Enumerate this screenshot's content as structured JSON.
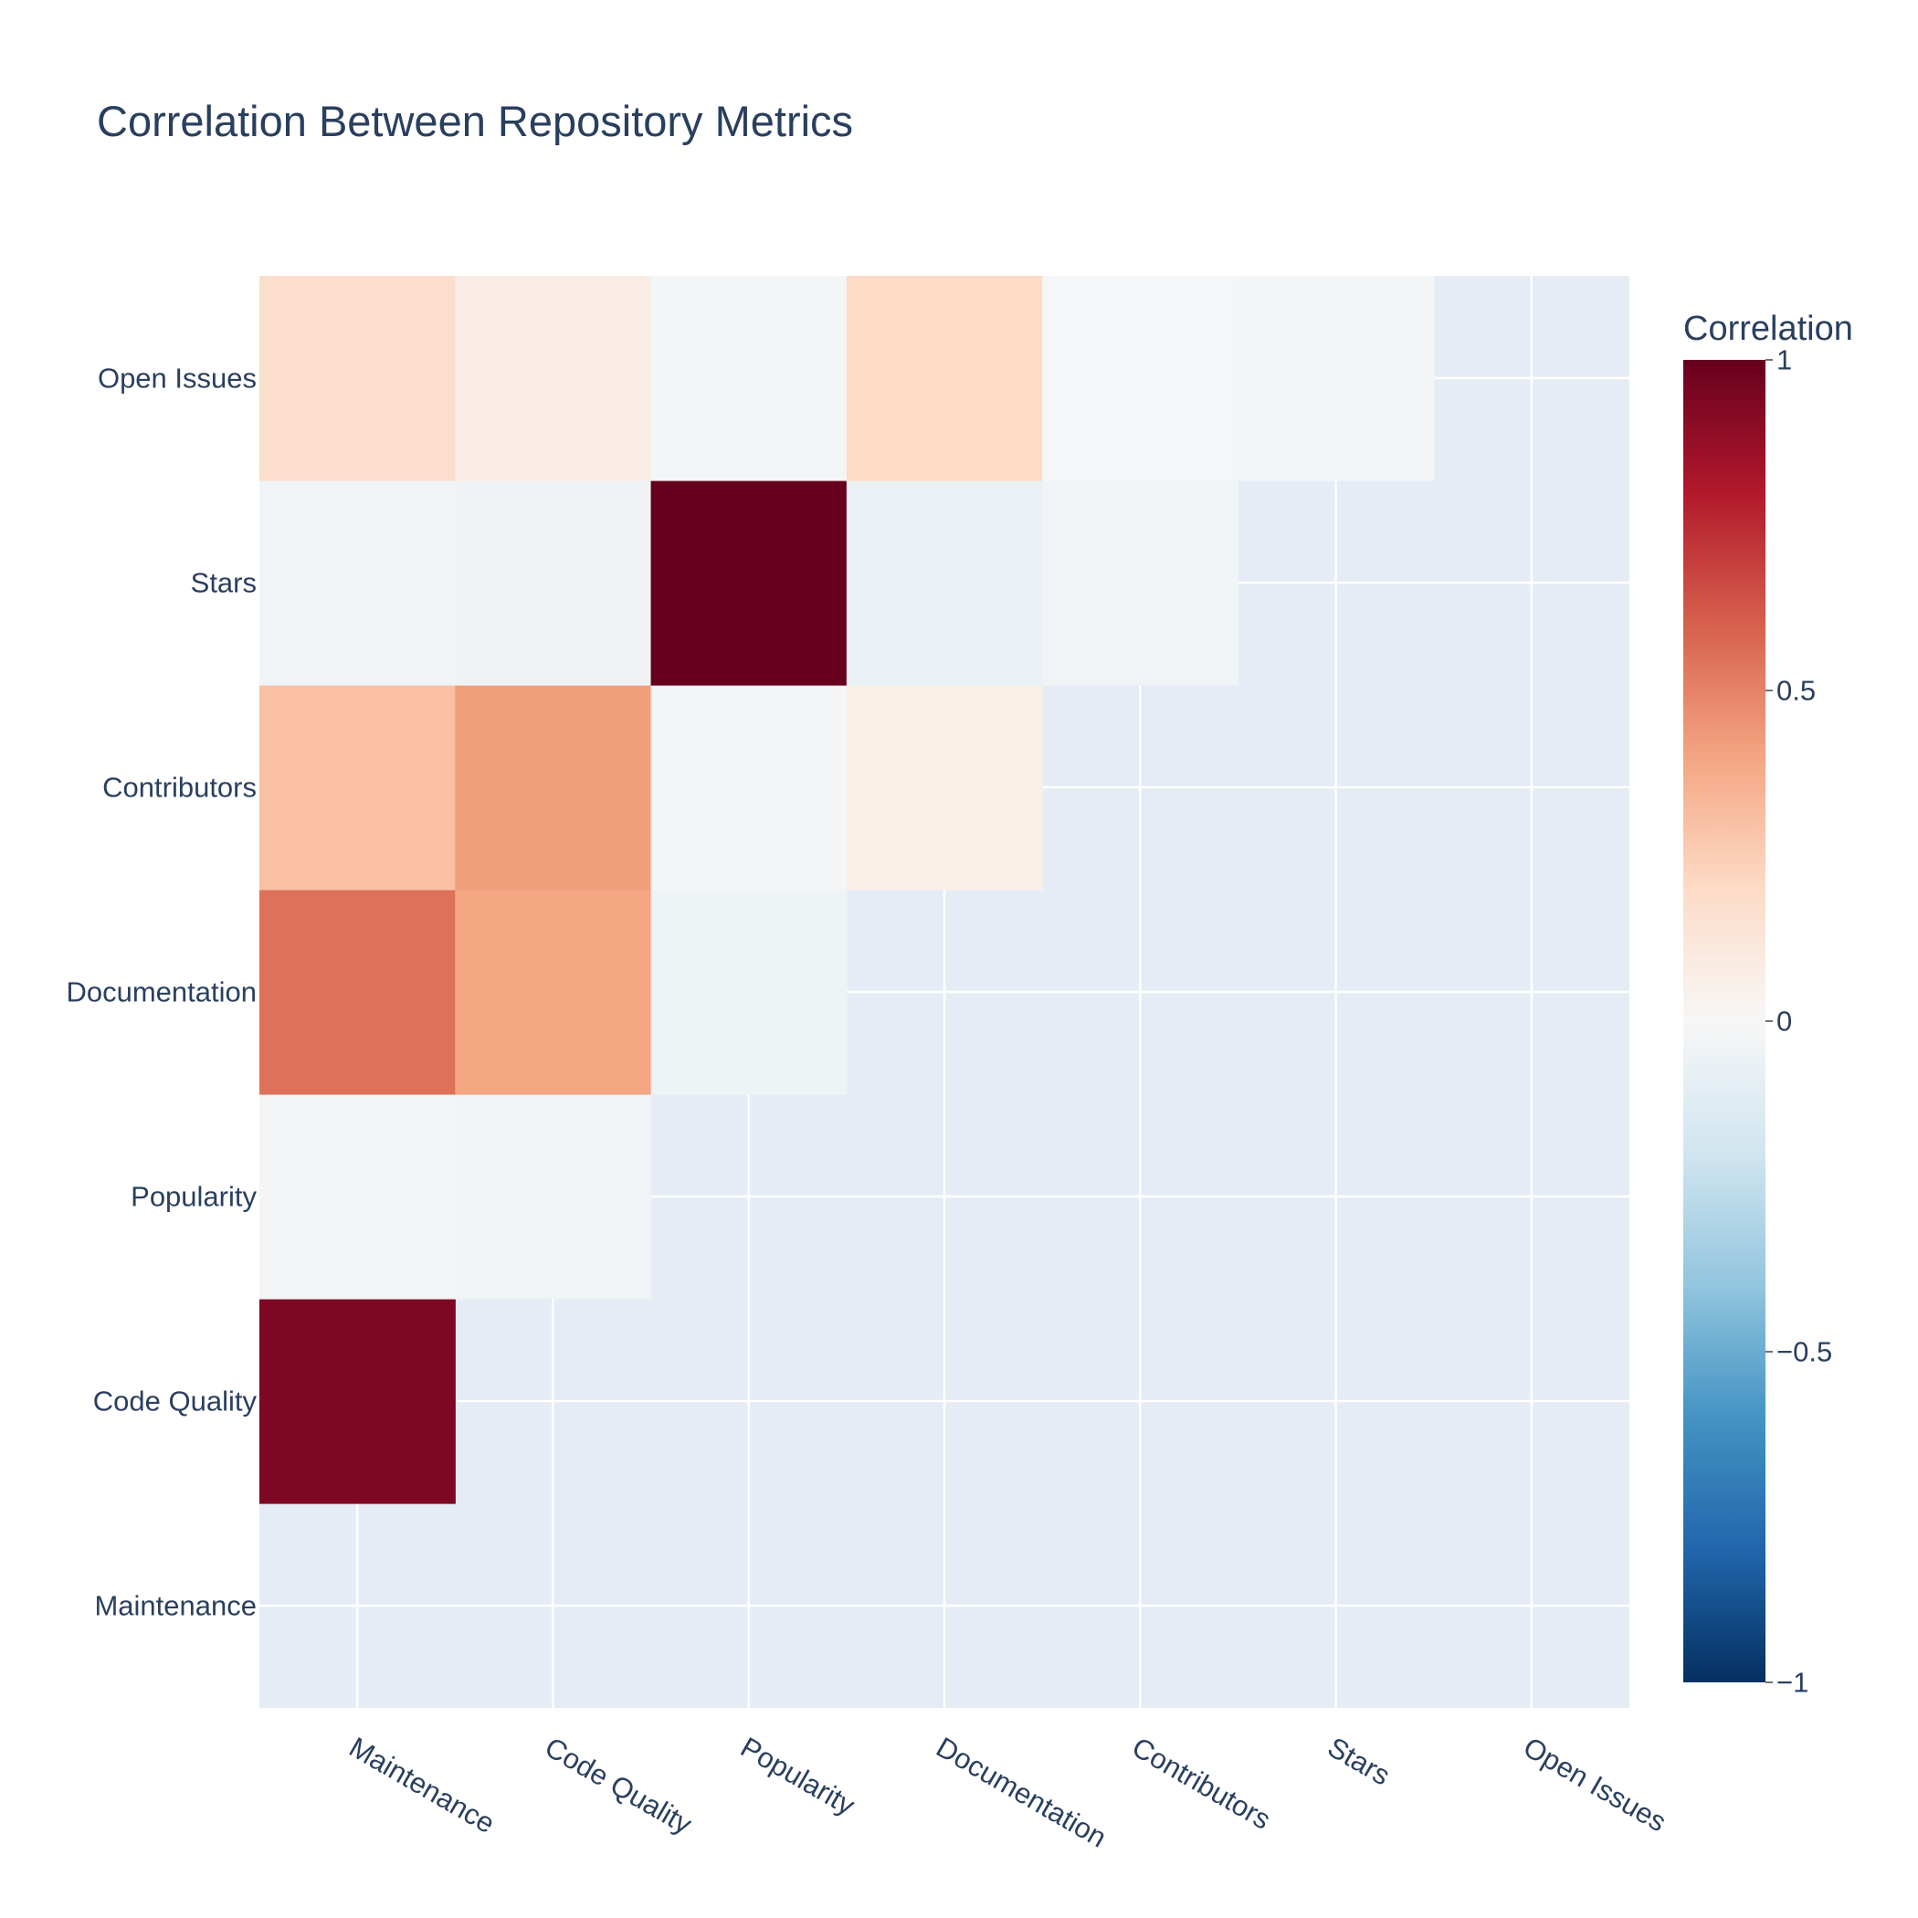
{
  "chart_data": {
    "type": "heatmap",
    "title": "Correlation Between Repository Metrics",
    "x_categories": [
      "Maintenance",
      "Code Quality",
      "Popularity",
      "Documentation",
      "Contributors",
      "Stars",
      "Open Issues"
    ],
    "y_categories": [
      "Maintenance",
      "Code Quality",
      "Popularity",
      "Documentation",
      "Contributors",
      "Stars",
      "Open Issues"
    ],
    "z": [
      [
        null,
        null,
        null,
        null,
        null,
        null,
        null
      ],
      [
        0.94,
        null,
        null,
        null,
        null,
        null,
        null
      ],
      [
        -0.02,
        -0.03,
        null,
        null,
        null,
        null,
        null
      ],
      [
        0.55,
        0.4,
        -0.05,
        null,
        null,
        null,
        null
      ],
      [
        0.3,
        0.42,
        -0.02,
        0.06,
        null,
        null,
        null
      ],
      [
        -0.03,
        -0.04,
        1.0,
        -0.07,
        -0.03,
        null,
        null
      ],
      [
        0.18,
        0.08,
        -0.02,
        0.2,
        -0.01,
        -0.02,
        null
      ]
    ],
    "zmin": -1,
    "zmax": 1,
    "colorscale": "RdBu",
    "colorbar": {
      "title": "Correlation",
      "tickvals": [
        1,
        0.5,
        0,
        -0.5,
        -1
      ],
      "ticktext": [
        "1",
        "0.5",
        "0",
        "−0.5",
        "−1"
      ]
    },
    "grid": true
  },
  "colors": {
    "background": "#ffffff",
    "plot_background": "#e5ecf6",
    "gridline": "#ffffff",
    "text": "#2a3f5f"
  }
}
